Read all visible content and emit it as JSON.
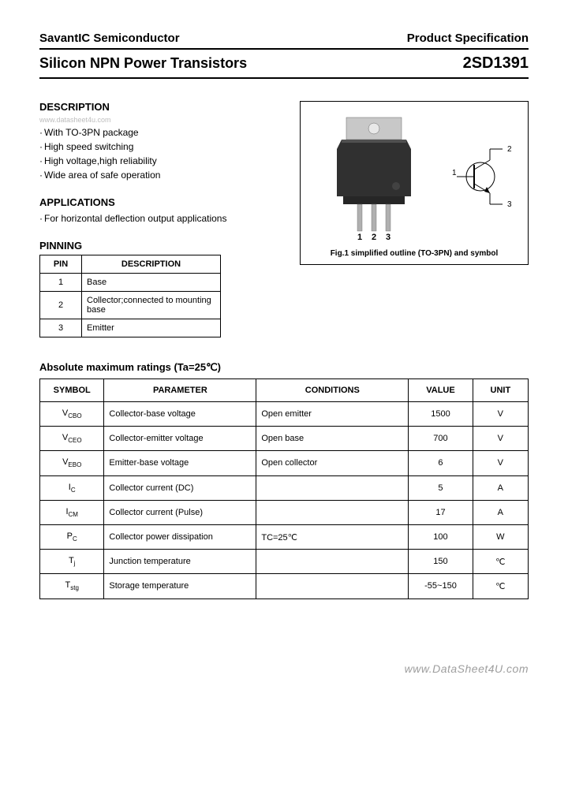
{
  "header": {
    "company": "SavantIC Semiconductor",
    "doc_type": "Product Specification",
    "product_family": "Silicon NPN Power Transistors",
    "part_number": "2SD1391"
  },
  "watermark_top": "www.datasheet4u.com",
  "description": {
    "heading": "DESCRIPTION",
    "items": [
      "With TO-3PN package",
      "High speed switching",
      "High voltage,high reliability",
      "Wide area of safe operation"
    ]
  },
  "applications": {
    "heading": "APPLICATIONS",
    "items": [
      "For horizontal deflection output applications"
    ]
  },
  "pinning": {
    "heading": "PINNING",
    "col_pin": "PIN",
    "col_desc": "DESCRIPTION",
    "rows": [
      {
        "pin": "1",
        "desc": "Base"
      },
      {
        "pin": "2",
        "desc": "Collector;connected to mounting base"
      },
      {
        "pin": "3",
        "desc": "Emitter"
      }
    ]
  },
  "figure": {
    "pin_labels": [
      "1",
      "2",
      "3"
    ],
    "symbol_pins": {
      "base": "1",
      "collector": "2",
      "emitter": "3"
    },
    "caption": "Fig.1 simplified outline (TO-3PN) and symbol"
  },
  "ratings": {
    "heading": "Absolute maximum ratings (Ta=25℃)",
    "columns": [
      "SYMBOL",
      "PARAMETER",
      "CONDITIONS",
      "VALUE",
      "UNIT"
    ],
    "rows": [
      {
        "symbol": "V",
        "sub": "CBO",
        "parameter": "Collector-base voltage",
        "conditions": "Open emitter",
        "value": "1500",
        "unit": "V"
      },
      {
        "symbol": "V",
        "sub": "CEO",
        "parameter": "Collector-emitter voltage",
        "conditions": "Open base",
        "value": "700",
        "unit": "V"
      },
      {
        "symbol": "V",
        "sub": "EBO",
        "parameter": "Emitter-base voltage",
        "conditions": "Open collector",
        "value": "6",
        "unit": "V"
      },
      {
        "symbol": "I",
        "sub": "C",
        "parameter": "Collector current (DC)",
        "conditions": "",
        "value": "5",
        "unit": "A"
      },
      {
        "symbol": "I",
        "sub": "CM",
        "parameter": "Collector current (Pulse)",
        "conditions": "",
        "value": "17",
        "unit": "A"
      },
      {
        "symbol": "P",
        "sub": "C",
        "parameter": "Collector power dissipation",
        "conditions": "TC=25℃",
        "value": "100",
        "unit": "W"
      },
      {
        "symbol": "T",
        "sub": "j",
        "parameter": "Junction temperature",
        "conditions": "",
        "value": "150",
        "unit": "℃"
      },
      {
        "symbol": "T",
        "sub": "stg",
        "parameter": "Storage temperature",
        "conditions": "",
        "value": "-55~150",
        "unit": "℃"
      }
    ]
  },
  "footer_watermark": "www.DataSheet4U.com",
  "colors": {
    "text": "#000000",
    "border": "#000000",
    "watermark": "#9e9e9e",
    "package_body": "#3a3a3a",
    "package_tab": "#c0c0c0",
    "lead": "#8a8a8a"
  }
}
